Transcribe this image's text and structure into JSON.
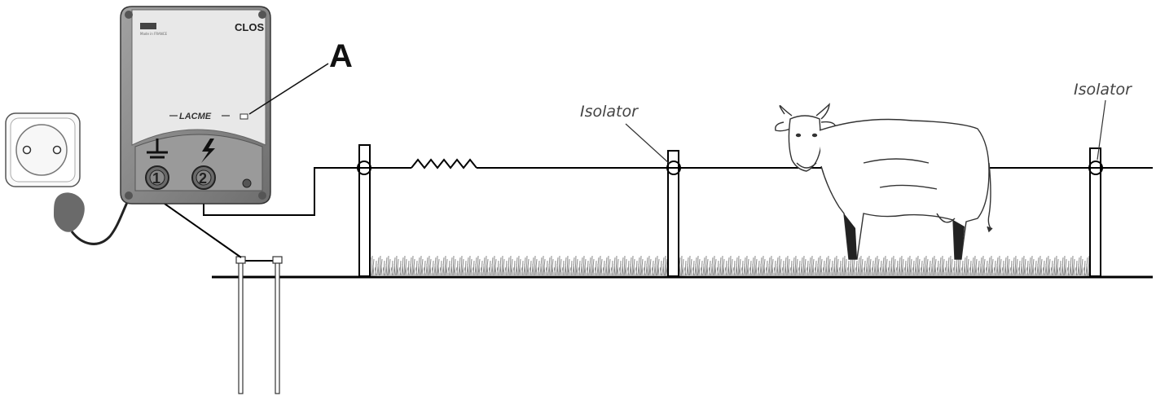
{
  "energizer": {
    "brand_model": "CLOS",
    "manufacturer": "LACME",
    "made_in": "Made in FRANCE",
    "terminal_earth": "1",
    "terminal_fence": "2"
  },
  "labels": {
    "indicator": "A",
    "isolator_middle": "Isolator",
    "isolator_right": "Isolator"
  },
  "colors": {
    "housing": "#8d8d8d",
    "panel": "#e9e9e9",
    "grass": "#9a9a9a",
    "wire": "#000000"
  },
  "icons": [
    "power-socket-icon",
    "plug-icon",
    "earth-symbol-icon",
    "lightning-icon",
    "resistor-icon",
    "cow-illustration"
  ]
}
